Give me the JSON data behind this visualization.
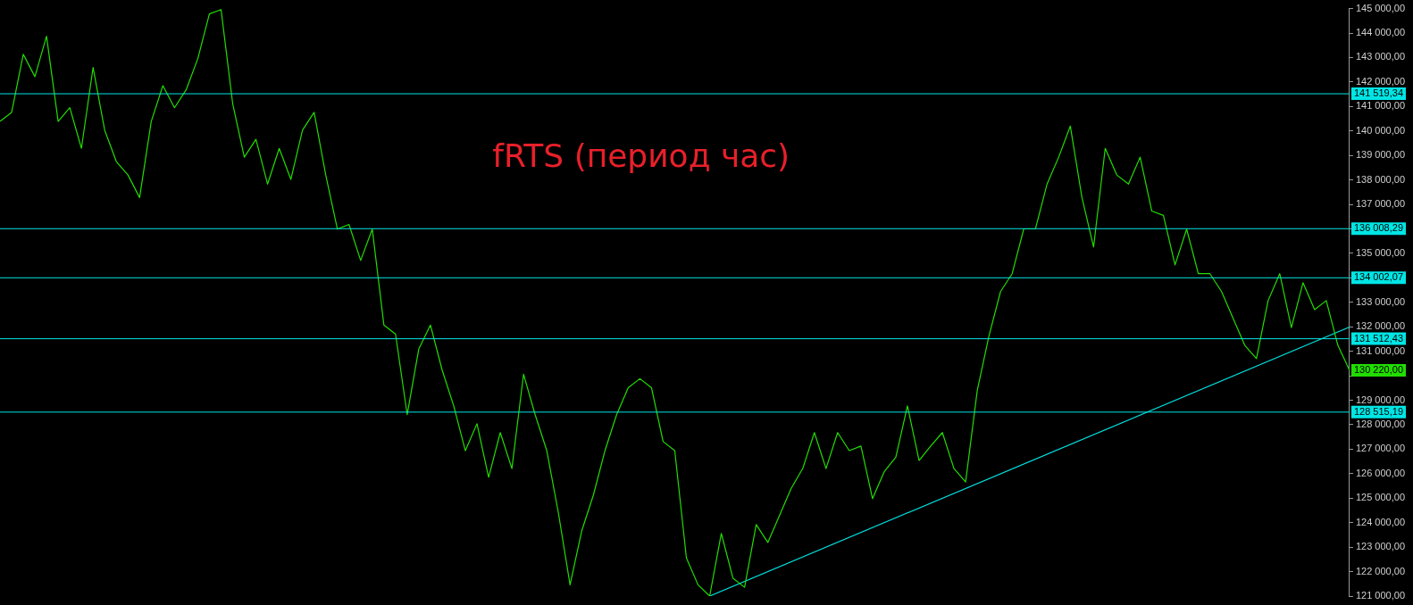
{
  "chart_data": {
    "type": "line",
    "title": "fRTS (период час)",
    "marker": "none",
    "grid": false,
    "tick_labels": "y",
    "categories": [
      null,
      null,
      null,
      null,
      null,
      null,
      null,
      null,
      null,
      null,
      null,
      null,
      null,
      null,
      null,
      null,
      null,
      null,
      null,
      null,
      null,
      null,
      null,
      null,
      null,
      null,
      null,
      null,
      null,
      null,
      null,
      null,
      null,
      null,
      null,
      null,
      null,
      null,
      null,
      null,
      null,
      null,
      null,
      null,
      null,
      null,
      null,
      null,
      null,
      null,
      null,
      null,
      null,
      null,
      null,
      null,
      null,
      null,
      null,
      null,
      null,
      null,
      null,
      null,
      null,
      null,
      null,
      null,
      null,
      null,
      null,
      null,
      null,
      null,
      null,
      null,
      null,
      null,
      null,
      null,
      null,
      null,
      null,
      null,
      null,
      null,
      null,
      null,
      null,
      null,
      null,
      null,
      null,
      null,
      null,
      null,
      null,
      null,
      null,
      null,
      null,
      null,
      null,
      null,
      null,
      null,
      null,
      null,
      null,
      null,
      null,
      null,
      null,
      null,
      null,
      null,
      null
    ],
    "ylim": [
      121000,
      145000
    ],
    "yticks": [
      {
        "value": 121000,
        "label": "121 000,00"
      },
      {
        "value": 122000,
        "label": "122 000,00"
      },
      {
        "value": 123000,
        "label": "123 000,00"
      },
      {
        "value": 124000,
        "label": "124 000,00"
      },
      {
        "value": 125000,
        "label": "125 000,00"
      },
      {
        "value": 126000,
        "label": "126 000,00"
      },
      {
        "value": 127000,
        "label": "127 000,00"
      },
      {
        "value": 128000,
        "label": "128 000,00"
      },
      {
        "value": 129000,
        "label": "129 000,00"
      },
      {
        "value": 130000,
        "label": null
      },
      {
        "value": 131000,
        "label": "131 000,00"
      },
      {
        "value": 132000,
        "label": "132 000,00"
      },
      {
        "value": 133000,
        "label": "133 000,00"
      },
      {
        "value": 134000,
        "label": null
      },
      {
        "value": 135000,
        "label": "135 000,00"
      },
      {
        "value": 136000,
        "label": null
      },
      {
        "value": 137000,
        "label": "137 000,00"
      },
      {
        "value": 138000,
        "label": "138 000,00"
      },
      {
        "value": 139000,
        "label": "139 000,00"
      },
      {
        "value": 140000,
        "label": "140 000,00"
      },
      {
        "value": 141000,
        "label": "141 000,00"
      },
      {
        "value": 142000,
        "label": "142 000,00"
      },
      {
        "value": 143000,
        "label": "143 000,00"
      },
      {
        "value": 144000,
        "label": "144 000,00"
      },
      {
        "value": 145000,
        "label": "145 000,00"
      }
    ],
    "series": [
      {
        "color": "#22dd00",
        "values": [
          140390,
          140760,
          143130,
          142220,
          143870,
          140390,
          140950,
          139290,
          142590,
          140030,
          138750,
          138200,
          137280,
          140390,
          141850,
          140950,
          141680,
          142950,
          144780,
          144960,
          141120,
          138930,
          139660,
          137830,
          139290,
          138020,
          140030,
          140760,
          138200,
          135990,
          136180,
          134710,
          135990,
          132070,
          131700,
          128410,
          131100,
          132070,
          130240,
          128770,
          126940,
          128040,
          125850,
          127680,
          126210,
          130060,
          128410,
          126940,
          124390,
          121460,
          123660,
          125120,
          126940,
          128410,
          129510,
          129880,
          129510,
          127310,
          126940,
          122560,
          121460,
          121000,
          123560,
          121730,
          121360,
          123920,
          123190,
          124290,
          125390,
          126210,
          127680,
          126210,
          127680,
          126940,
          127130,
          124980,
          126080,
          126670,
          128770,
          126540,
          127130,
          127680,
          126210,
          125660,
          129400,
          131610,
          133440,
          134170,
          136000,
          136000,
          137830,
          138930,
          140200,
          137280,
          135260,
          139290,
          138200,
          137830,
          138930,
          136730,
          136550,
          134530,
          135990,
          134170,
          134170,
          133440,
          132340,
          131240,
          130700,
          133070,
          134170,
          131970,
          133800,
          132700,
          133070,
          131240,
          130220
        ]
      },
      {
        "color": "#00e5e5",
        "values": [
          null,
          null,
          null,
          null,
          null,
          null,
          null,
          null,
          null,
          null,
          null,
          null,
          null,
          null,
          null,
          null,
          null,
          null,
          null,
          null,
          null,
          null,
          null,
          null,
          null,
          null,
          null,
          null,
          null,
          null,
          null,
          null,
          null,
          null,
          null,
          null,
          null,
          null,
          null,
          null,
          null,
          null,
          null,
          null,
          null,
          null,
          null,
          null,
          null,
          null,
          null,
          null,
          null,
          null,
          null,
          null,
          null,
          null,
          null,
          null,
          null,
          121000,
          null,
          null,
          null,
          null,
          null,
          null,
          null,
          null,
          null,
          null,
          null,
          null,
          null,
          null,
          null,
          null,
          null,
          null,
          null,
          null,
          null,
          null,
          null,
          null,
          null,
          null,
          null,
          null,
          null,
          null,
          null,
          null,
          null,
          null,
          null,
          null,
          null,
          null,
          null,
          null,
          null,
          null,
          null,
          null,
          null,
          null,
          null,
          null,
          null,
          null,
          null,
          null,
          null,
          null,
          131990
        ]
      }
    ],
    "ref_lines": [
      {
        "axis": "y",
        "value": 141519.34,
        "label": "141 519,34",
        "color": "#00e5e5"
      },
      {
        "axis": "y",
        "value": 136008.29,
        "label": "136 008,29",
        "color": "#00e5e5"
      },
      {
        "axis": "y",
        "value": 134002.07,
        "label": "134 002,07",
        "color": "#00e5e5"
      },
      {
        "axis": "y",
        "value": 131512.43,
        "label": "131 512,43",
        "color": "#00e5e5"
      },
      {
        "axis": "y",
        "value": 128515.19,
        "label": "128 515,19",
        "color": "#00e5e5"
      }
    ],
    "annotations": [
      "130 220,00"
    ]
  }
}
